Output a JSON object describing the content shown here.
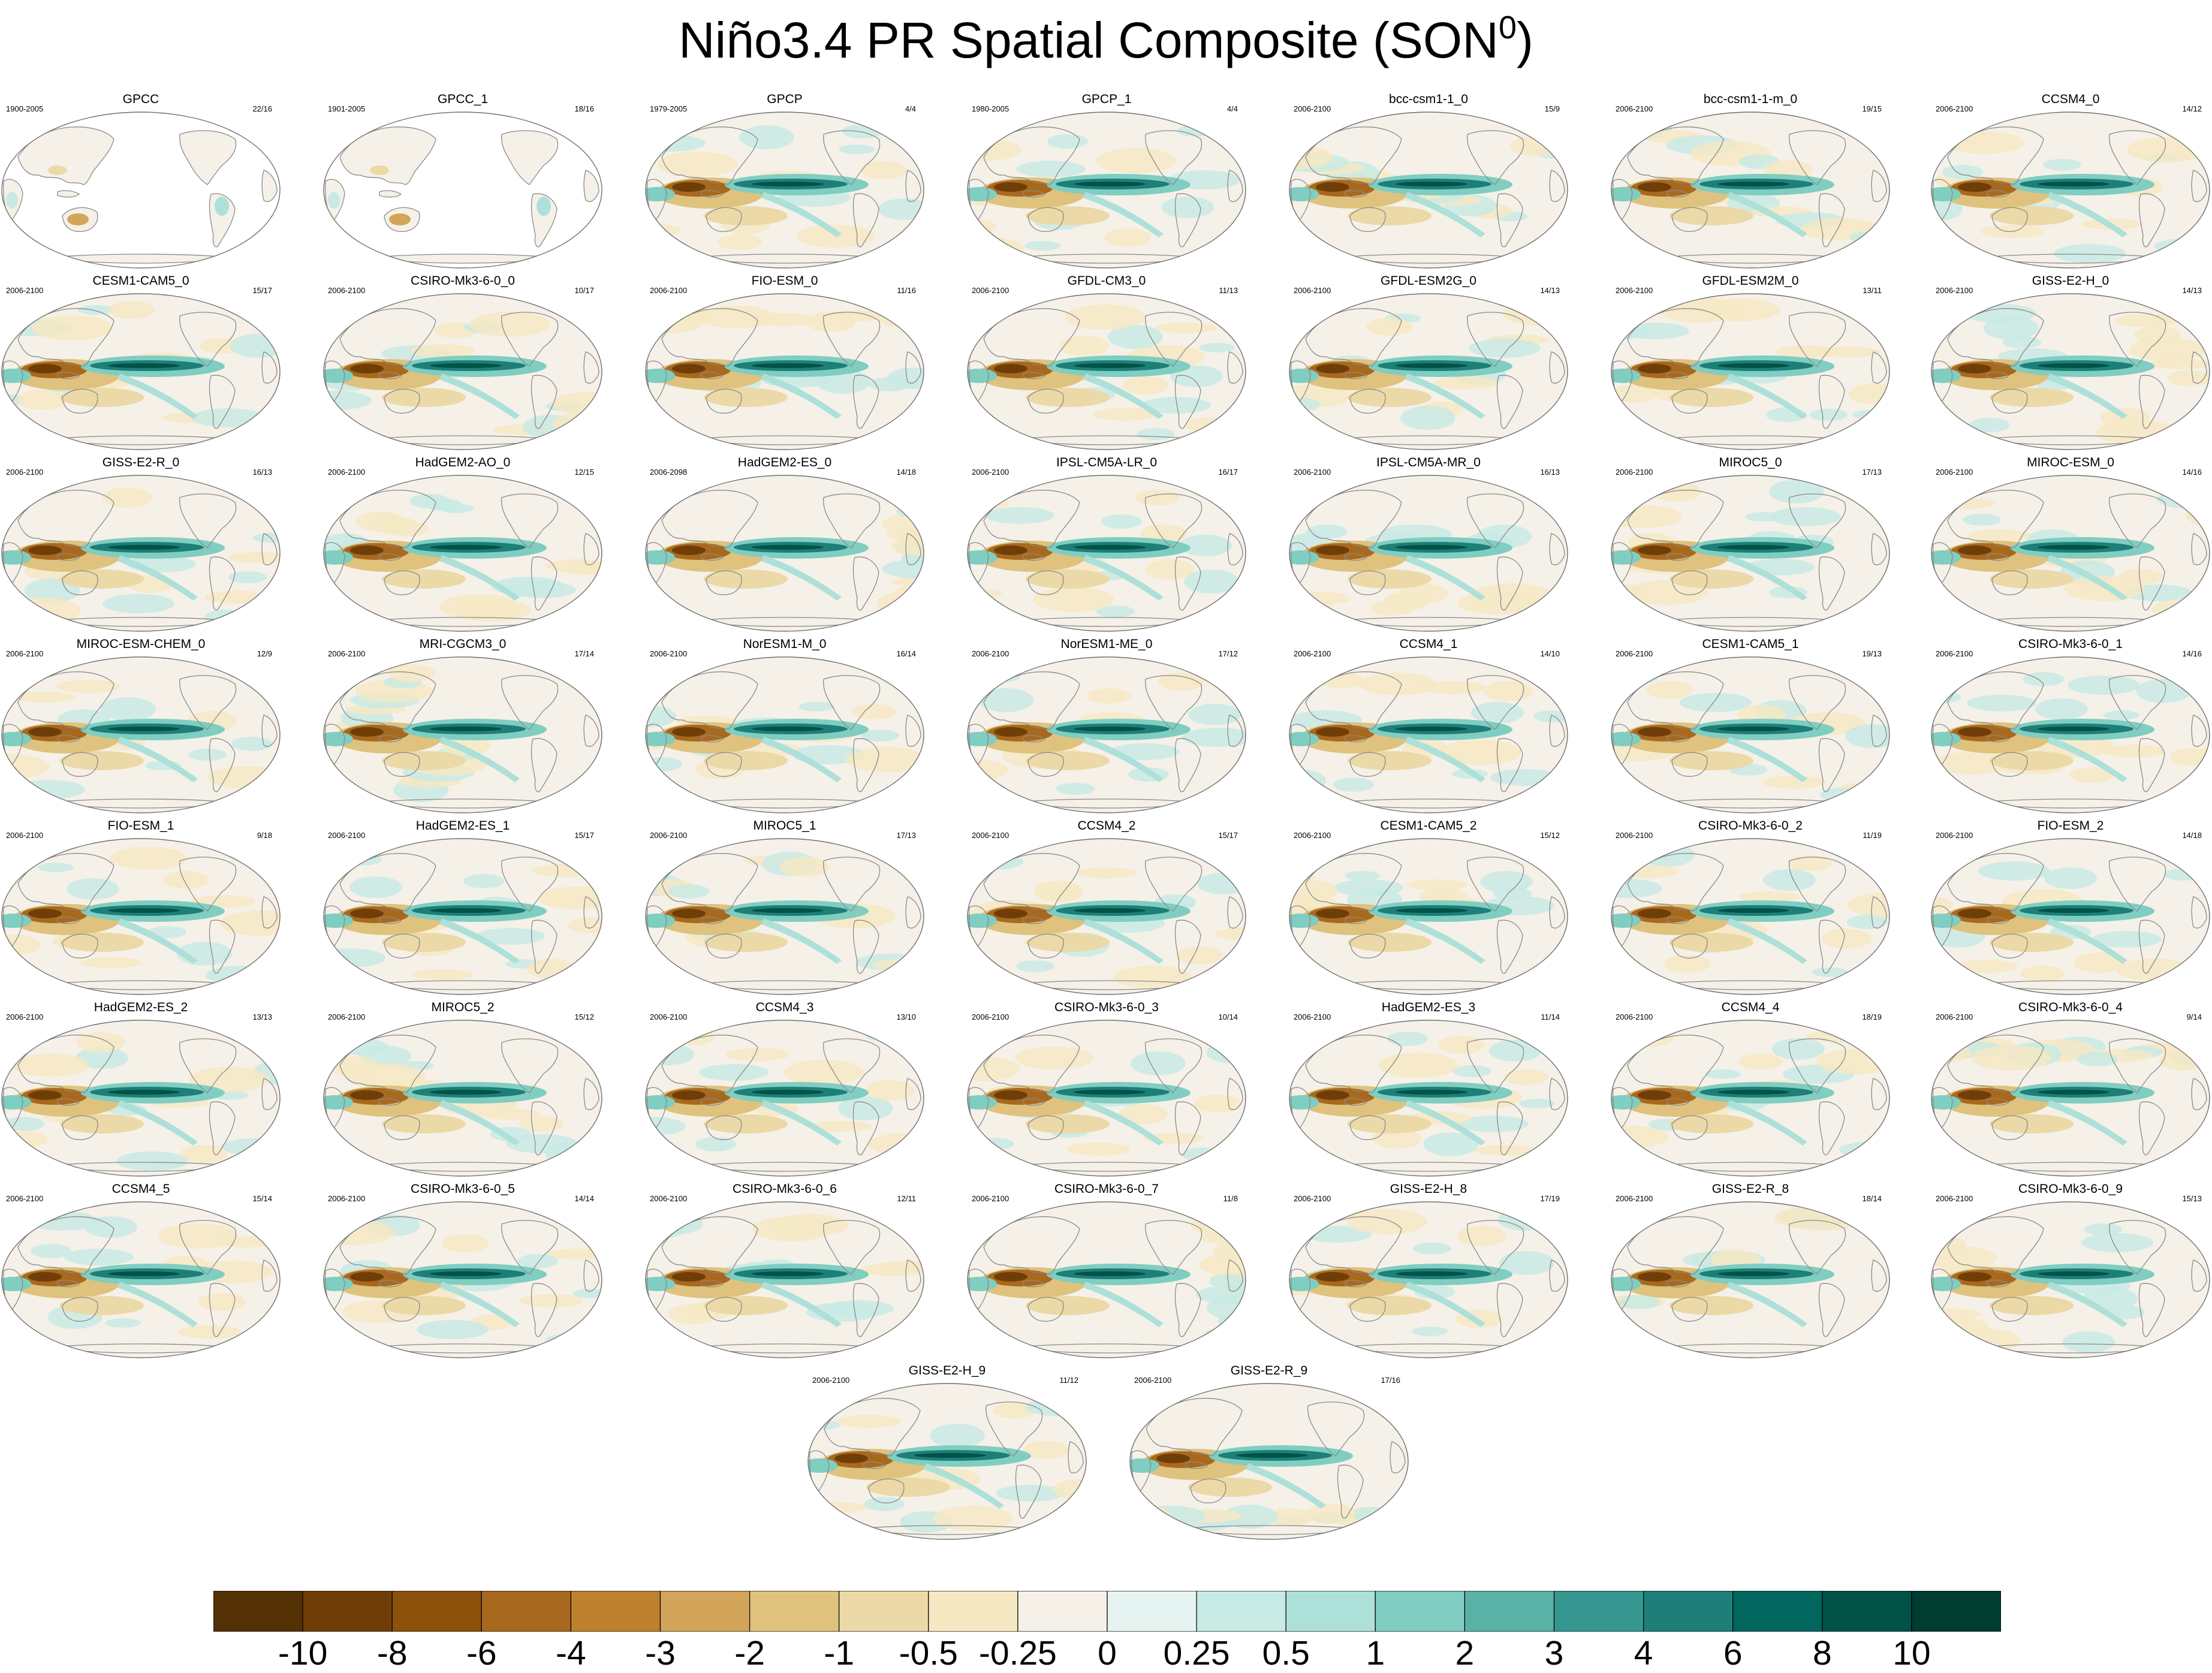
{
  "title": {
    "main": "Niño3.4 PR Spatial Composite (SON",
    "superscript": "0",
    "close": ")"
  },
  "colorbar": {
    "levels": [
      "-10",
      "-8",
      "-6",
      "-4",
      "-3",
      "-2",
      "-1",
      "-0.5",
      "-0.25",
      "0",
      "0.25",
      "0.5",
      "1",
      "2",
      "3",
      "4",
      "6",
      "8",
      "10"
    ],
    "colors": [
      "#543005",
      "#6f3e08",
      "#8c510a",
      "#a8691e",
      "#bf812d",
      "#d2a55a",
      "#dfc27d",
      "#ecd9a8",
      "#f6e8c3",
      "#f5f1e8",
      "#e6f4f1",
      "#c7eae5",
      "#ade0d8",
      "#80cdc1",
      "#5ab2a6",
      "#35978f",
      "#1d7f77",
      "#01665e",
      "#015247",
      "#003c30"
    ]
  },
  "panels": [
    {
      "title": "GPCC",
      "period": "1900-2005",
      "count": "22/16",
      "land_only": true
    },
    {
      "title": "GPCC_1",
      "period": "1901-2005",
      "count": "18/16",
      "land_only": true
    },
    {
      "title": "GPCP",
      "period": "1979-2005",
      "count": "4/4"
    },
    {
      "title": "GPCP_1",
      "period": "1980-2005",
      "count": "4/4"
    },
    {
      "title": "bcc-csm1-1_0",
      "period": "2006-2100",
      "count": "15/9"
    },
    {
      "title": "bcc-csm1-1-m_0",
      "period": "2006-2100",
      "count": "19/15"
    },
    {
      "title": "CCSM4_0",
      "period": "2006-2100",
      "count": "14/12"
    },
    {
      "title": "CESM1-CAM5_0",
      "period": "2006-2100",
      "count": "15/17"
    },
    {
      "title": "CSIRO-Mk3-6-0_0",
      "period": "2006-2100",
      "count": "10/17"
    },
    {
      "title": "FIO-ESM_0",
      "period": "2006-2100",
      "count": "11/16"
    },
    {
      "title": "GFDL-CM3_0",
      "period": "2006-2100",
      "count": "11/13"
    },
    {
      "title": "GFDL-ESM2G_0",
      "period": "2006-2100",
      "count": "14/13"
    },
    {
      "title": "GFDL-ESM2M_0",
      "period": "2006-2100",
      "count": "13/11"
    },
    {
      "title": "GISS-E2-H_0",
      "period": "2006-2100",
      "count": "14/13"
    },
    {
      "title": "GISS-E2-R_0",
      "period": "2006-2100",
      "count": "16/13"
    },
    {
      "title": "HadGEM2-AO_0",
      "period": "2006-2100",
      "count": "12/15"
    },
    {
      "title": "HadGEM2-ES_0",
      "period": "2006-2098",
      "count": "14/18"
    },
    {
      "title": "IPSL-CM5A-LR_0",
      "period": "2006-2100",
      "count": "16/17"
    },
    {
      "title": "IPSL-CM5A-MR_0",
      "period": "2006-2100",
      "count": "16/13"
    },
    {
      "title": "MIROC5_0",
      "period": "2006-2100",
      "count": "17/13"
    },
    {
      "title": "MIROC-ESM_0",
      "period": "2006-2100",
      "count": "14/16"
    },
    {
      "title": "MIROC-ESM-CHEM_0",
      "period": "2006-2100",
      "count": "12/9"
    },
    {
      "title": "MRI-CGCM3_0",
      "period": "2006-2100",
      "count": "17/14"
    },
    {
      "title": "NorESM1-M_0",
      "period": "2006-2100",
      "count": "16/14"
    },
    {
      "title": "NorESM1-ME_0",
      "period": "2006-2100",
      "count": "17/12"
    },
    {
      "title": "CCSM4_1",
      "period": "2006-2100",
      "count": "14/10"
    },
    {
      "title": "CESM1-CAM5_1",
      "period": "2006-2100",
      "count": "19/13"
    },
    {
      "title": "CSIRO-Mk3-6-0_1",
      "period": "2006-2100",
      "count": "14/16"
    },
    {
      "title": "FIO-ESM_1",
      "period": "2006-2100",
      "count": "9/18"
    },
    {
      "title": "HadGEM2-ES_1",
      "period": "2006-2100",
      "count": "15/17"
    },
    {
      "title": "MIROC5_1",
      "period": "2006-2100",
      "count": "17/13"
    },
    {
      "title": "CCSM4_2",
      "period": "2006-2100",
      "count": "15/17"
    },
    {
      "title": "CESM1-CAM5_2",
      "period": "2006-2100",
      "count": "15/12"
    },
    {
      "title": "CSIRO-Mk3-6-0_2",
      "period": "2006-2100",
      "count": "11/19"
    },
    {
      "title": "FIO-ESM_2",
      "period": "2006-2100",
      "count": "14/18"
    },
    {
      "title": "HadGEM2-ES_2",
      "period": "2006-2100",
      "count": "13/13"
    },
    {
      "title": "MIROC5_2",
      "period": "2006-2100",
      "count": "15/12"
    },
    {
      "title": "CCSM4_3",
      "period": "2006-2100",
      "count": "13/10"
    },
    {
      "title": "CSIRO-Mk3-6-0_3",
      "period": "2006-2100",
      "count": "10/14"
    },
    {
      "title": "HadGEM2-ES_3",
      "period": "2006-2100",
      "count": "11/14"
    },
    {
      "title": "CCSM4_4",
      "period": "2006-2100",
      "count": "18/19"
    },
    {
      "title": "CSIRO-Mk3-6-0_4",
      "period": "2006-2100",
      "count": "9/14"
    },
    {
      "title": "CCSM4_5",
      "period": "2006-2100",
      "count": "15/14"
    },
    {
      "title": "CSIRO-Mk3-6-0_5",
      "period": "2006-2100",
      "count": "14/14"
    },
    {
      "title": "CSIRO-Mk3-6-0_6",
      "period": "2006-2100",
      "count": "12/11"
    },
    {
      "title": "CSIRO-Mk3-6-0_7",
      "period": "2006-2100",
      "count": "11/8"
    },
    {
      "title": "GISS-E2-H_8",
      "period": "2006-2100",
      "count": "17/19"
    },
    {
      "title": "GISS-E2-R_8",
      "period": "2006-2100",
      "count": "18/14"
    },
    {
      "title": "CSIRO-Mk3-6-0_9",
      "period": "2006-2100",
      "count": "15/13"
    },
    {
      "title": "GISS-E2-H_9",
      "period": "2006-2100",
      "count": "11/12"
    },
    {
      "title": "GISS-E2-R_9",
      "period": "2006-2100",
      "count": "17/16"
    }
  ]
}
